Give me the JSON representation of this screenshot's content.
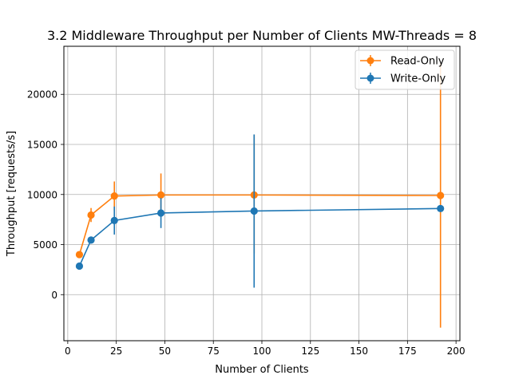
{
  "chart_data": {
    "type": "line",
    "title": "3.2 Middleware Throughput per Number of Clients MW-Threads = 8",
    "xlabel": "Number of Clients",
    "ylabel": "Throughput [requests/s]",
    "xlim": [
      -2,
      202
    ],
    "ylim": [
      -4600,
      24800
    ],
    "xticks": [
      0,
      25,
      50,
      75,
      100,
      125,
      150,
      175,
      200
    ],
    "yticks": [
      0,
      5000,
      10000,
      15000,
      20000
    ],
    "grid": true,
    "legend_position": "top-right",
    "x": [
      6,
      12,
      24,
      48,
      96,
      192
    ],
    "series": [
      {
        "name": "Read-Only",
        "color": "#ff7f0e",
        "values": [
          4000,
          7950,
          9850,
          9950,
          9950,
          9900
        ],
        "err_low": [
          3800,
          7250,
          8400,
          7800,
          4100,
          -3300
        ],
        "err_high": [
          4200,
          8650,
          11300,
          12100,
          16000,
          23100
        ]
      },
      {
        "name": "Write-Only",
        "color": "#1f77b4",
        "values": [
          2850,
          5450,
          7400,
          8150,
          8350,
          8600
        ],
        "err_low": [
          2750,
          5250,
          6000,
          6650,
          700,
          8500
        ],
        "err_high": [
          2950,
          5650,
          8800,
          9650,
          16000,
          8700
        ]
      }
    ]
  }
}
